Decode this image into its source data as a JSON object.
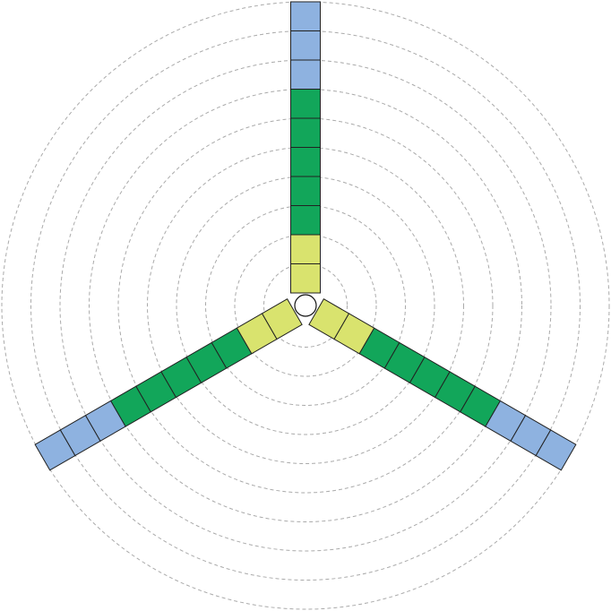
{
  "rings": 10,
  "arms": [
    {
      "colors": [
        "#d9e36e",
        "#d9e36e",
        "#12a65a",
        "#12a65a",
        "#12a65a",
        "#12a65a",
        "#12a65a",
        "#8eb2e0",
        "#8eb2e0",
        "#8eb2e0"
      ]
    },
    {
      "colors": [
        "#d9e36e",
        "#d9e36e",
        "#12a65a",
        "#12a65a",
        "#12a65a",
        "#12a65a",
        "#12a65a",
        "#8eb2e0",
        "#8eb2e0",
        "#8eb2e0"
      ]
    },
    {
      "colors": [
        "#d9e36e",
        "#d9e36e",
        "#12a65a",
        "#12a65a",
        "#12a65a",
        "#12a65a",
        "#12a65a",
        "#8eb2e0",
        "#8eb2e0",
        "#8eb2e0"
      ]
    }
  ]
}
